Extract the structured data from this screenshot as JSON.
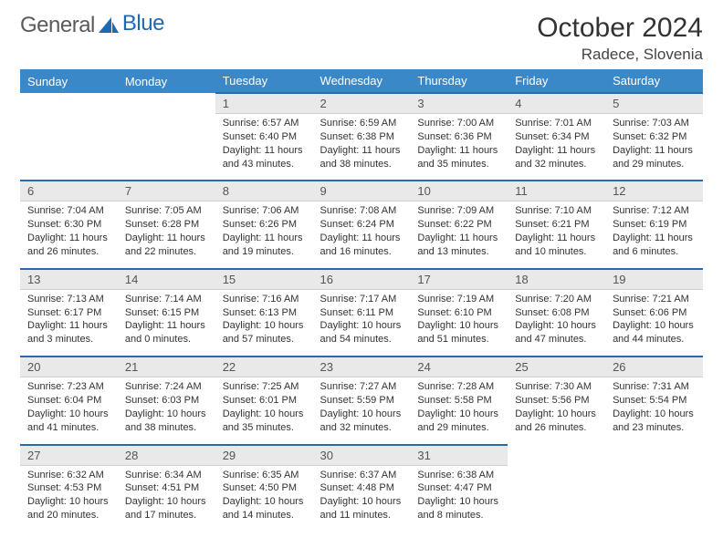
{
  "brand": {
    "word1": "General",
    "word2": "Blue"
  },
  "title": "October 2024",
  "location": "Radece, Slovenia",
  "colors": {
    "header_bg": "#3b88c9",
    "header_text": "#ffffff",
    "daynum_bg": "#e9e9e9",
    "daynum_border": "#2a6aa8",
    "text": "#333333",
    "logo_gray": "#5a5a5a",
    "logo_blue": "#1f69b3"
  },
  "weekdays": [
    "Sunday",
    "Monday",
    "Tuesday",
    "Wednesday",
    "Thursday",
    "Friday",
    "Saturday"
  ],
  "weeks": [
    [
      null,
      null,
      {
        "n": "1",
        "sunrise": "Sunrise: 6:57 AM",
        "sunset": "Sunset: 6:40 PM",
        "daylight": "Daylight: 11 hours and 43 minutes."
      },
      {
        "n": "2",
        "sunrise": "Sunrise: 6:59 AM",
        "sunset": "Sunset: 6:38 PM",
        "daylight": "Daylight: 11 hours and 38 minutes."
      },
      {
        "n": "3",
        "sunrise": "Sunrise: 7:00 AM",
        "sunset": "Sunset: 6:36 PM",
        "daylight": "Daylight: 11 hours and 35 minutes."
      },
      {
        "n": "4",
        "sunrise": "Sunrise: 7:01 AM",
        "sunset": "Sunset: 6:34 PM",
        "daylight": "Daylight: 11 hours and 32 minutes."
      },
      {
        "n": "5",
        "sunrise": "Sunrise: 7:03 AM",
        "sunset": "Sunset: 6:32 PM",
        "daylight": "Daylight: 11 hours and 29 minutes."
      }
    ],
    [
      {
        "n": "6",
        "sunrise": "Sunrise: 7:04 AM",
        "sunset": "Sunset: 6:30 PM",
        "daylight": "Daylight: 11 hours and 26 minutes."
      },
      {
        "n": "7",
        "sunrise": "Sunrise: 7:05 AM",
        "sunset": "Sunset: 6:28 PM",
        "daylight": "Daylight: 11 hours and 22 minutes."
      },
      {
        "n": "8",
        "sunrise": "Sunrise: 7:06 AM",
        "sunset": "Sunset: 6:26 PM",
        "daylight": "Daylight: 11 hours and 19 minutes."
      },
      {
        "n": "9",
        "sunrise": "Sunrise: 7:08 AM",
        "sunset": "Sunset: 6:24 PM",
        "daylight": "Daylight: 11 hours and 16 minutes."
      },
      {
        "n": "10",
        "sunrise": "Sunrise: 7:09 AM",
        "sunset": "Sunset: 6:22 PM",
        "daylight": "Daylight: 11 hours and 13 minutes."
      },
      {
        "n": "11",
        "sunrise": "Sunrise: 7:10 AM",
        "sunset": "Sunset: 6:21 PM",
        "daylight": "Daylight: 11 hours and 10 minutes."
      },
      {
        "n": "12",
        "sunrise": "Sunrise: 7:12 AM",
        "sunset": "Sunset: 6:19 PM",
        "daylight": "Daylight: 11 hours and 6 minutes."
      }
    ],
    [
      {
        "n": "13",
        "sunrise": "Sunrise: 7:13 AM",
        "sunset": "Sunset: 6:17 PM",
        "daylight": "Daylight: 11 hours and 3 minutes."
      },
      {
        "n": "14",
        "sunrise": "Sunrise: 7:14 AM",
        "sunset": "Sunset: 6:15 PM",
        "daylight": "Daylight: 11 hours and 0 minutes."
      },
      {
        "n": "15",
        "sunrise": "Sunrise: 7:16 AM",
        "sunset": "Sunset: 6:13 PM",
        "daylight": "Daylight: 10 hours and 57 minutes."
      },
      {
        "n": "16",
        "sunrise": "Sunrise: 7:17 AM",
        "sunset": "Sunset: 6:11 PM",
        "daylight": "Daylight: 10 hours and 54 minutes."
      },
      {
        "n": "17",
        "sunrise": "Sunrise: 7:19 AM",
        "sunset": "Sunset: 6:10 PM",
        "daylight": "Daylight: 10 hours and 51 minutes."
      },
      {
        "n": "18",
        "sunrise": "Sunrise: 7:20 AM",
        "sunset": "Sunset: 6:08 PM",
        "daylight": "Daylight: 10 hours and 47 minutes."
      },
      {
        "n": "19",
        "sunrise": "Sunrise: 7:21 AM",
        "sunset": "Sunset: 6:06 PM",
        "daylight": "Daylight: 10 hours and 44 minutes."
      }
    ],
    [
      {
        "n": "20",
        "sunrise": "Sunrise: 7:23 AM",
        "sunset": "Sunset: 6:04 PM",
        "daylight": "Daylight: 10 hours and 41 minutes."
      },
      {
        "n": "21",
        "sunrise": "Sunrise: 7:24 AM",
        "sunset": "Sunset: 6:03 PM",
        "daylight": "Daylight: 10 hours and 38 minutes."
      },
      {
        "n": "22",
        "sunrise": "Sunrise: 7:25 AM",
        "sunset": "Sunset: 6:01 PM",
        "daylight": "Daylight: 10 hours and 35 minutes."
      },
      {
        "n": "23",
        "sunrise": "Sunrise: 7:27 AM",
        "sunset": "Sunset: 5:59 PM",
        "daylight": "Daylight: 10 hours and 32 minutes."
      },
      {
        "n": "24",
        "sunrise": "Sunrise: 7:28 AM",
        "sunset": "Sunset: 5:58 PM",
        "daylight": "Daylight: 10 hours and 29 minutes."
      },
      {
        "n": "25",
        "sunrise": "Sunrise: 7:30 AM",
        "sunset": "Sunset: 5:56 PM",
        "daylight": "Daylight: 10 hours and 26 minutes."
      },
      {
        "n": "26",
        "sunrise": "Sunrise: 7:31 AM",
        "sunset": "Sunset: 5:54 PM",
        "daylight": "Daylight: 10 hours and 23 minutes."
      }
    ],
    [
      {
        "n": "27",
        "sunrise": "Sunrise: 6:32 AM",
        "sunset": "Sunset: 4:53 PM",
        "daylight": "Daylight: 10 hours and 20 minutes."
      },
      {
        "n": "28",
        "sunrise": "Sunrise: 6:34 AM",
        "sunset": "Sunset: 4:51 PM",
        "daylight": "Daylight: 10 hours and 17 minutes."
      },
      {
        "n": "29",
        "sunrise": "Sunrise: 6:35 AM",
        "sunset": "Sunset: 4:50 PM",
        "daylight": "Daylight: 10 hours and 14 minutes."
      },
      {
        "n": "30",
        "sunrise": "Sunrise: 6:37 AM",
        "sunset": "Sunset: 4:48 PM",
        "daylight": "Daylight: 10 hours and 11 minutes."
      },
      {
        "n": "31",
        "sunrise": "Sunrise: 6:38 AM",
        "sunset": "Sunset: 4:47 PM",
        "daylight": "Daylight: 10 hours and 8 minutes."
      },
      null,
      null
    ]
  ]
}
